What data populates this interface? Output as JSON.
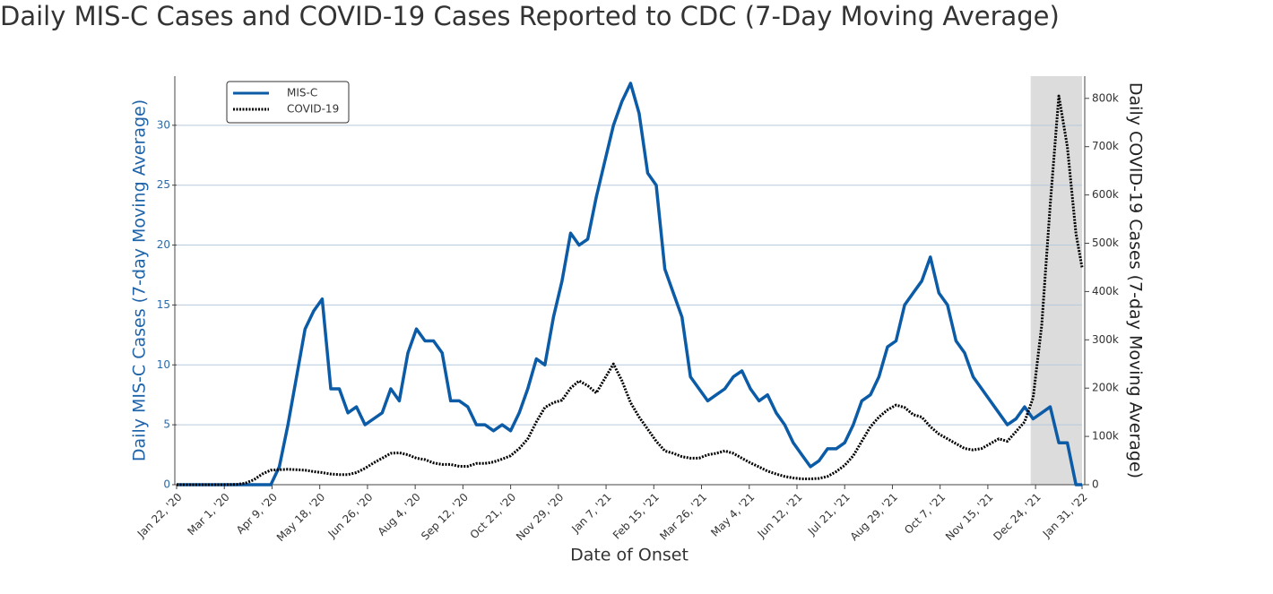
{
  "chart_data": {
    "type": "line",
    "title": "Daily MIS-C Cases and COVID-19 Cases Reported to CDC (7-Day Moving Average)",
    "x_label": "Date of Onset",
    "y_label": "Daily MIS-C Cases (7-day Moving Average)",
    "y2_label": "Daily COVID-19 Cases (7-day Moving Average)",
    "x": [
      "2020-01-22",
      "2020-01-29",
      "2020-02-05",
      "2020-02-12",
      "2020-02-19",
      "2020-02-26",
      "2020-03-04",
      "2020-03-11",
      "2020-03-18",
      "2020-03-25",
      "2020-04-01",
      "2020-04-08",
      "2020-04-15",
      "2020-04-22",
      "2020-04-29",
      "2020-05-06",
      "2020-05-13",
      "2020-05-20",
      "2020-05-27",
      "2020-06-03",
      "2020-06-10",
      "2020-06-17",
      "2020-06-24",
      "2020-07-01",
      "2020-07-08",
      "2020-07-15",
      "2020-07-22",
      "2020-07-29",
      "2020-08-05",
      "2020-08-12",
      "2020-08-19",
      "2020-08-26",
      "2020-09-02",
      "2020-09-09",
      "2020-09-16",
      "2020-09-23",
      "2020-09-30",
      "2020-10-07",
      "2020-10-14",
      "2020-10-21",
      "2020-10-28",
      "2020-11-04",
      "2020-11-11",
      "2020-11-18",
      "2020-11-25",
      "2020-12-02",
      "2020-12-09",
      "2020-12-16",
      "2020-12-23",
      "2020-12-30",
      "2021-01-06",
      "2021-01-13",
      "2021-01-20",
      "2021-01-27",
      "2021-02-03",
      "2021-02-10",
      "2021-02-17",
      "2021-02-24",
      "2021-03-03",
      "2021-03-10",
      "2021-03-17",
      "2021-03-24",
      "2021-03-31",
      "2021-04-07",
      "2021-04-14",
      "2021-04-21",
      "2021-04-28",
      "2021-05-05",
      "2021-05-12",
      "2021-05-19",
      "2021-05-26",
      "2021-06-02",
      "2021-06-09",
      "2021-06-16",
      "2021-06-23",
      "2021-06-30",
      "2021-07-07",
      "2021-07-14",
      "2021-07-21",
      "2021-07-28",
      "2021-08-04",
      "2021-08-11",
      "2021-08-18",
      "2021-08-25",
      "2021-09-01",
      "2021-09-08",
      "2021-09-15",
      "2021-09-22",
      "2021-09-29",
      "2021-10-06",
      "2021-10-13",
      "2021-10-20",
      "2021-10-27",
      "2021-11-03",
      "2021-11-10",
      "2021-11-17",
      "2021-11-24",
      "2021-12-01",
      "2021-12-08",
      "2021-12-15",
      "2021-12-22",
      "2021-12-29",
      "2022-01-05",
      "2022-01-12",
      "2022-01-19",
      "2022-01-26",
      "2022-01-31"
    ],
    "series": [
      {
        "name": "MIS-C",
        "color": "#0b5ba6",
        "dash": "solid",
        "axis": "y",
        "values": [
          0,
          0,
          0,
          0,
          0,
          0,
          0,
          0,
          0,
          0,
          0,
          0,
          1.5,
          5,
          9,
          13,
          14.5,
          15.5,
          8,
          8,
          6,
          6.5,
          5,
          5.5,
          6,
          8,
          7,
          11,
          13,
          12,
          12,
          11,
          7,
          7,
          6.5,
          5,
          5,
          4.5,
          5,
          4.5,
          6,
          8,
          10.5,
          10,
          14,
          17,
          21,
          20,
          20.5,
          24,
          27,
          30,
          32,
          33.5,
          31,
          26,
          25,
          18,
          16,
          14,
          9,
          8,
          7,
          7.5,
          8,
          9,
          9.5,
          8,
          7,
          7.5,
          6,
          5,
          3.5,
          2.5,
          1.5,
          2,
          3,
          3,
          3.5,
          5,
          7,
          7.5,
          9,
          11.5,
          12,
          15,
          16,
          17,
          19,
          16,
          15,
          12,
          11,
          9,
          8,
          7,
          6,
          5,
          5.5,
          6.5,
          5.5,
          6,
          6.5,
          3.5,
          3.5,
          0,
          0
        ]
      },
      {
        "name": "COVID-19",
        "color": "#000000",
        "dash": "dot",
        "axis": "y2",
        "values": [
          0,
          0,
          0,
          0,
          0,
          10,
          100,
          500,
          3000,
          10000,
          22000,
          30000,
          31000,
          32000,
          31000,
          30000,
          27000,
          25000,
          22000,
          21000,
          21000,
          25000,
          34000,
          45000,
          55000,
          65000,
          66000,
          62000,
          55000,
          52000,
          45000,
          42000,
          42000,
          38000,
          38000,
          44000,
          44000,
          47000,
          53000,
          60000,
          75000,
          95000,
          130000,
          160000,
          170000,
          175000,
          200000,
          215000,
          205000,
          190000,
          220000,
          250000,
          215000,
          170000,
          140000,
          115000,
          90000,
          70000,
          65000,
          58000,
          55000,
          55000,
          62000,
          65000,
          70000,
          65000,
          55000,
          45000,
          37000,
          28000,
          22000,
          17000,
          14000,
          12000,
          12000,
          13000,
          17000,
          27000,
          40000,
          60000,
          90000,
          120000,
          140000,
          155000,
          165000,
          160000,
          145000,
          140000,
          120000,
          105000,
          95000,
          85000,
          75000,
          72000,
          75000,
          85000,
          95000,
          90000,
          110000,
          130000,
          180000,
          330000,
          580000,
          805000,
          700000,
          520000,
          450000
        ]
      }
    ],
    "xlim": [
      "2020-01-22",
      "2022-01-31"
    ],
    "xticks": [
      {
        "value": "2020-01-22",
        "label": "Jan 22, '20"
      },
      {
        "value": "2020-03-01",
        "label": "Mar 1, '20"
      },
      {
        "value": "2020-04-09",
        "label": "Apr 9, '20"
      },
      {
        "value": "2020-05-18",
        "label": "May 18, '20"
      },
      {
        "value": "2020-06-26",
        "label": "Jun 26, '20"
      },
      {
        "value": "2020-08-04",
        "label": "Aug 4, '20"
      },
      {
        "value": "2020-09-12",
        "label": "Sep 12, '20"
      },
      {
        "value": "2020-10-21",
        "label": "Oct 21, '20"
      },
      {
        "value": "2020-11-29",
        "label": "Nov 29, '20"
      },
      {
        "value": "2021-01-07",
        "label": "Jan 7, '21"
      },
      {
        "value": "2021-02-15",
        "label": "Feb 15, '21"
      },
      {
        "value": "2021-03-26",
        "label": "Mar 26, '21"
      },
      {
        "value": "2021-05-04",
        "label": "May 4, '21"
      },
      {
        "value": "2021-06-12",
        "label": "Jun 12, '21"
      },
      {
        "value": "2021-07-21",
        "label": "Jul 21, '21"
      },
      {
        "value": "2021-08-29",
        "label": "Aug 29, '21"
      },
      {
        "value": "2021-10-07",
        "label": "Oct 7, '21"
      },
      {
        "value": "2021-11-15",
        "label": "Nov 15, '21"
      },
      {
        "value": "2021-12-24",
        "label": "Dec 24, '21"
      },
      {
        "value": "2022-01-31",
        "label": "Jan 31, '22"
      }
    ],
    "ylim": [
      0,
      34.1
    ],
    "yticks": [
      0,
      5,
      10,
      15,
      20,
      25,
      30
    ],
    "y2lim": [
      0,
      846000
    ],
    "y2ticks": [
      0,
      {
        "value": 100000,
        "label": "100k"
      },
      {
        "value": 200000,
        "label": "200k"
      },
      {
        "value": 300000,
        "label": "300k"
      },
      {
        "value": 400000,
        "label": "400k"
      },
      {
        "value": 500000,
        "label": "500k"
      },
      {
        "value": 600000,
        "label": "600k"
      },
      {
        "value": 700000,
        "label": "700k"
      },
      {
        "value": 800000,
        "label": "800k"
      }
    ],
    "highlight": [
      "2021-12-20",
      "2022-01-31"
    ],
    "highlight_color": "#dcdcdc",
    "grid": true,
    "legend": "upper left"
  }
}
